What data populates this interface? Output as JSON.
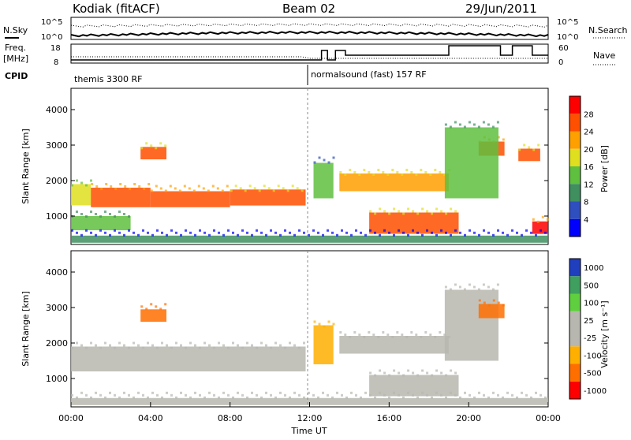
{
  "header": {
    "station": "Kodiak (fitACF)",
    "beam": "Beam 02",
    "date": "29/Jun/2011"
  },
  "top_panels": {
    "nsky_label": "N.Sky",
    "nsearch_label": "N.Search",
    "noise_ticks": [
      "10^5",
      "10^0"
    ],
    "freq_label_1": "Freq.",
    "freq_label_2": "[MHz]",
    "freq_ticks": [
      "18",
      "8"
    ],
    "nave_label": "Nave",
    "nave_ticks": [
      "60",
      "0"
    ],
    "cpid_label": "CPID",
    "cpid_programs": [
      {
        "name": "themis 3300 RF",
        "start_hour": 0
      },
      {
        "name": "normalsound (fast) 157 RF",
        "start_hour": 12
      }
    ]
  },
  "chart_data": [
    {
      "type": "heatmap",
      "name": "power-panel",
      "xlabel": "",
      "ylabel": "Slant Range [km]",
      "xlim": [
        0,
        24
      ],
      "ylim": [
        200,
        4600
      ],
      "yticks": [
        1000,
        2000,
        3000,
        4000
      ],
      "colorbar": {
        "label": "Power [dB]",
        "ticks": [
          4,
          8,
          12,
          16,
          20,
          24,
          28
        ],
        "colors": [
          "#0000ff",
          "#2f4fbf",
          "#3f8f5f",
          "#5fbf3f",
          "#dfdf1f",
          "#ff9f00",
          "#ff4f00",
          "#ff0000"
        ]
      },
      "bands": [
        {
          "start": 0.0,
          "end": 1.0,
          "low_km": 1300,
          "high_km": 1900,
          "level": 18
        },
        {
          "start": 1.0,
          "end": 4.0,
          "low_km": 1250,
          "high_km": 1800,
          "level": 26
        },
        {
          "start": 4.0,
          "end": 8.0,
          "low_km": 1250,
          "high_km": 1700,
          "level": 27
        },
        {
          "start": 8.0,
          "end": 11.8,
          "low_km": 1300,
          "high_km": 1750,
          "level": 24
        },
        {
          "start": 13.5,
          "end": 19.0,
          "low_km": 1700,
          "high_km": 2200,
          "level": 22
        },
        {
          "start": 0.0,
          "end": 3.0,
          "low_km": 600,
          "high_km": 1000,
          "level": 14
        },
        {
          "start": 15.0,
          "end": 19.5,
          "low_km": 500,
          "high_km": 1100,
          "level": 24
        },
        {
          "start": 3.5,
          "end": 4.8,
          "low_km": 2600,
          "high_km": 2950,
          "level": 24
        },
        {
          "start": 20.5,
          "end": 21.8,
          "low_km": 2700,
          "high_km": 3100,
          "level": 26
        },
        {
          "start": 22.5,
          "end": 23.6,
          "low_km": 2550,
          "high_km": 2900,
          "level": 24
        },
        {
          "start": 23.2,
          "end": 24.0,
          "low_km": 500,
          "high_km": 850,
          "level": 28
        },
        {
          "start": 12.2,
          "end": 13.2,
          "low_km": 1500,
          "high_km": 2500,
          "level": 12
        },
        {
          "start": 18.8,
          "end": 21.5,
          "low_km": 1500,
          "high_km": 3500,
          "level": 14
        },
        {
          "start": 0.0,
          "end": 24.0,
          "low_km": 250,
          "high_km": 450,
          "level": 8
        }
      ]
    },
    {
      "type": "heatmap",
      "name": "velocity-panel",
      "xlabel": "Time UT",
      "ylabel": "Slant Range [km]",
      "xlim": [
        0,
        24
      ],
      "ylim": [
        200,
        4600
      ],
      "yticks": [
        1000,
        2000,
        3000,
        4000
      ],
      "xticks": [
        "00:00",
        "04:00",
        "08:00",
        "12:00",
        "16:00",
        "20:00",
        "00:00"
      ],
      "colorbar": {
        "label": "Velocity [m s⁻¹]",
        "ticks": [
          1000,
          500,
          100,
          25,
          -25,
          -100,
          -500,
          -1000
        ],
        "colors": [
          "#1f3fbf",
          "#3f9f5f",
          "#5fcf3f",
          "#b7b7af",
          "#b7b7af",
          "#ffaf00",
          "#ff6f00",
          "#ff0000"
        ]
      },
      "bands": [
        {
          "start": 0.0,
          "end": 11.8,
          "low_km": 1200,
          "high_km": 1900,
          "level": 0
        },
        {
          "start": 13.5,
          "end": 19.0,
          "low_km": 1700,
          "high_km": 2200,
          "level": 0
        },
        {
          "start": 15.0,
          "end": 19.5,
          "low_km": 500,
          "high_km": 1100,
          "level": 0
        },
        {
          "start": 18.8,
          "end": 21.5,
          "low_km": 1500,
          "high_km": 3500,
          "level": 0
        },
        {
          "start": 12.2,
          "end": 13.2,
          "low_km": 1400,
          "high_km": 2500,
          "level": -50
        },
        {
          "start": 3.5,
          "end": 4.8,
          "low_km": 2600,
          "high_km": 2950,
          "level": -120
        },
        {
          "start": 20.5,
          "end": 21.8,
          "low_km": 2700,
          "high_km": 3100,
          "level": -120
        },
        {
          "start": 0.0,
          "end": 24.0,
          "low_km": 250,
          "high_km": 450,
          "level": 60
        }
      ]
    }
  ]
}
